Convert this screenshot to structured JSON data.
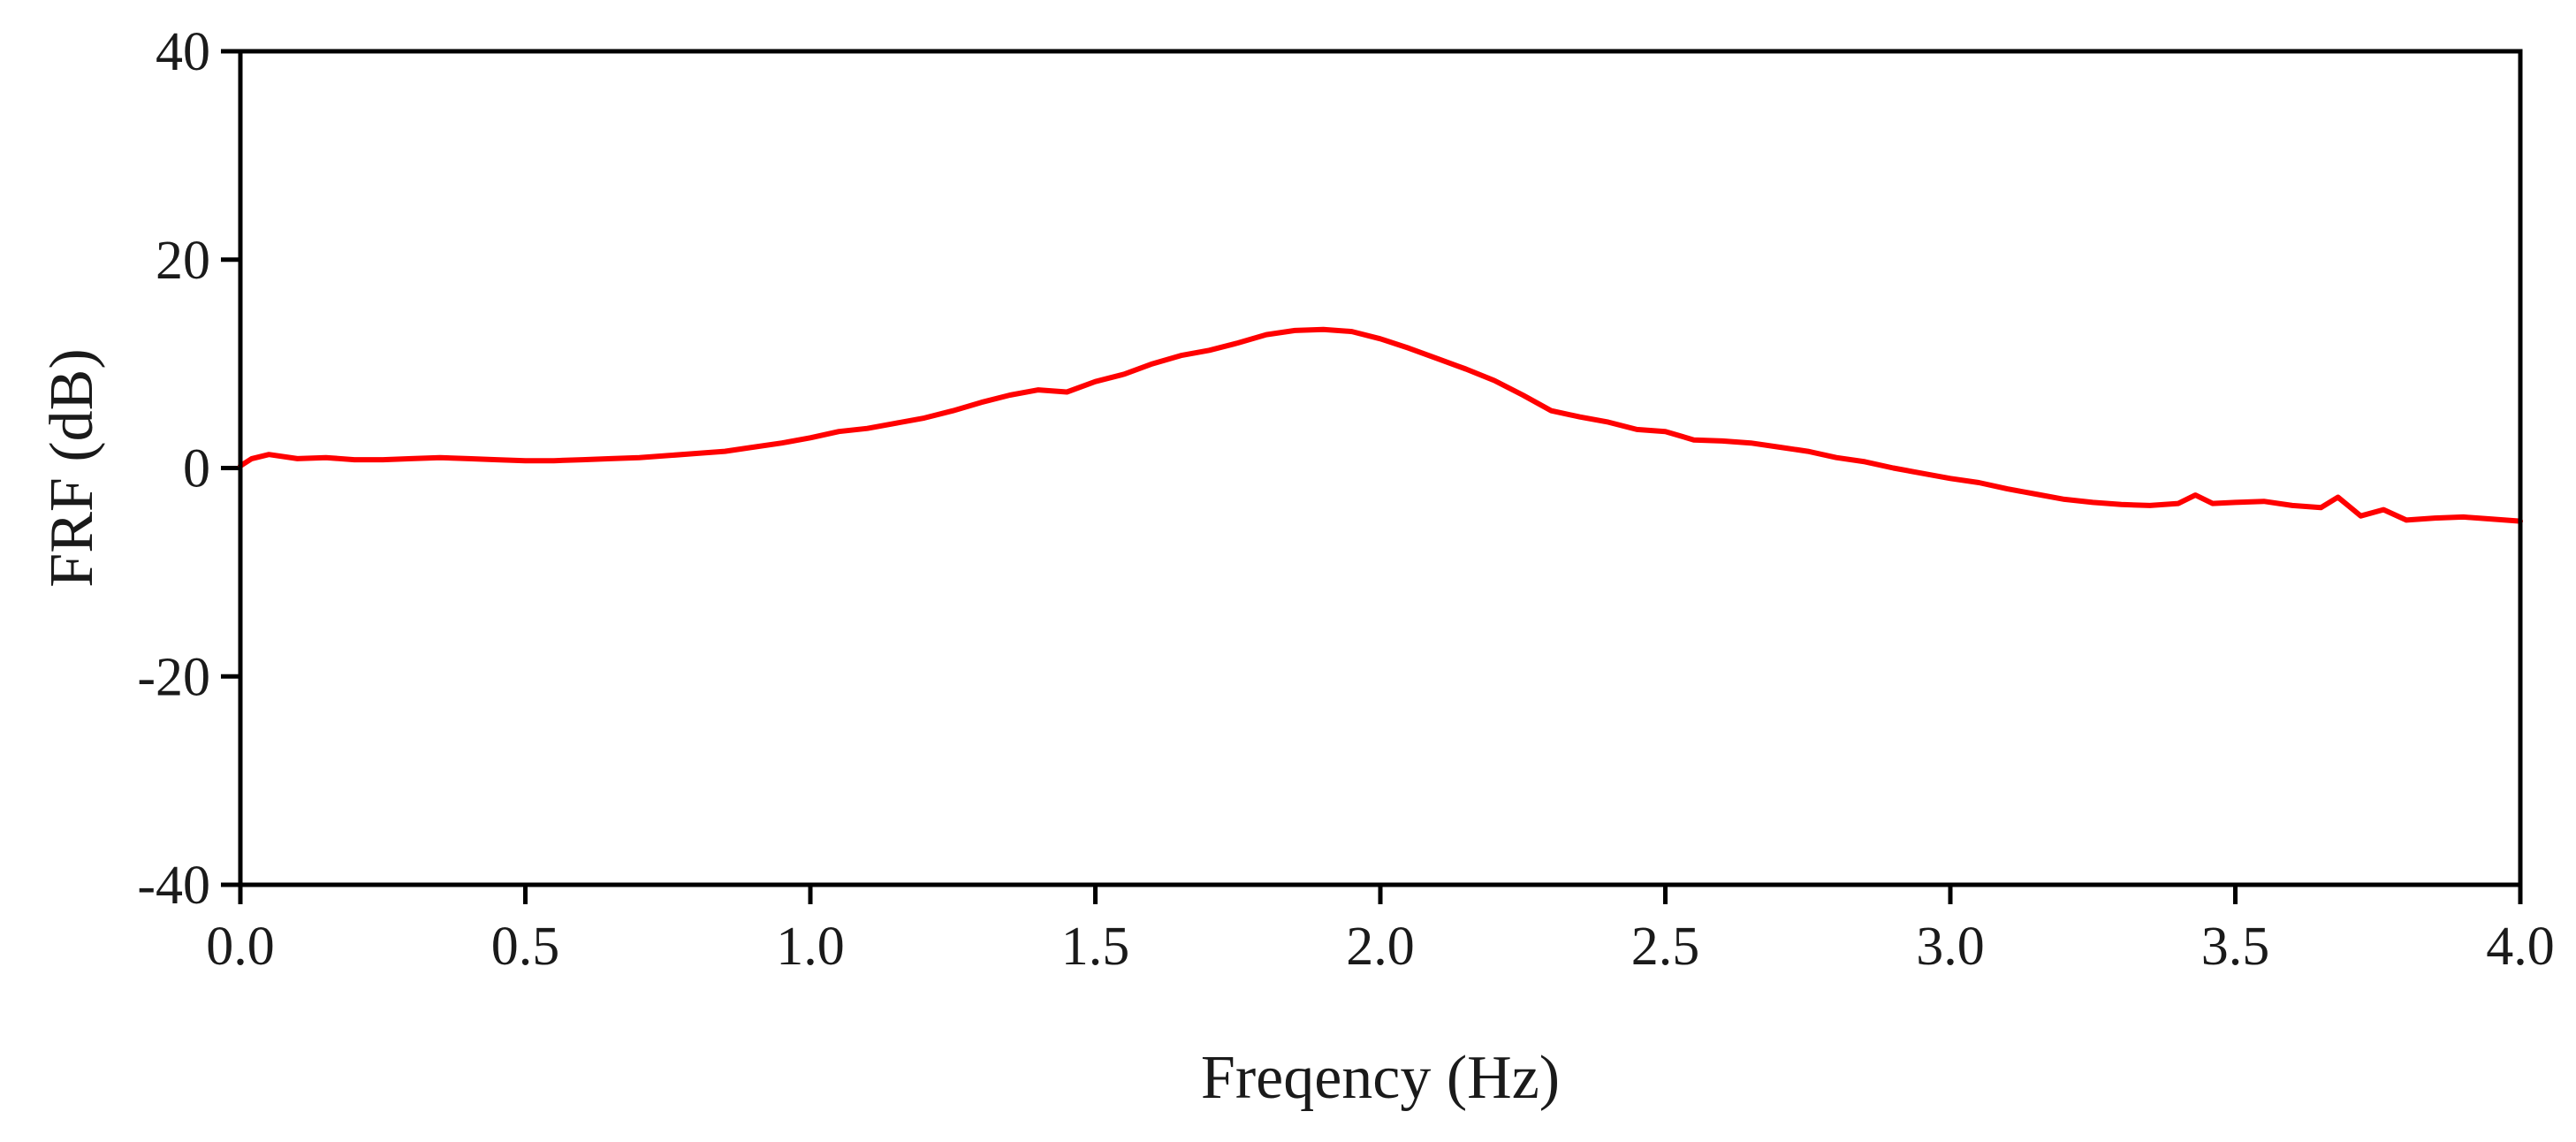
{
  "chart_data": {
    "type": "line",
    "title": "",
    "xlabel": "Freqency (Hz)",
    "ylabel": "FRF (dB)",
    "xlim": [
      0.0,
      4.0
    ],
    "ylim": [
      -40,
      40
    ],
    "xticks": [
      "0.0",
      "0.5",
      "1.0",
      "1.5",
      "2.0",
      "2.5",
      "3.0",
      "3.5",
      "4.0"
    ],
    "yticks": [
      "40",
      "20",
      "0",
      "-20",
      "-40"
    ],
    "grid": false,
    "legend": "none",
    "line_color": "#ff0000",
    "series": [
      {
        "x": [
          0.0,
          0.02,
          0.05,
          0.1,
          0.15,
          0.2,
          0.25,
          0.3,
          0.35,
          0.4,
          0.45,
          0.5,
          0.55,
          0.6,
          0.65,
          0.7,
          0.75,
          0.8,
          0.85,
          0.9,
          0.95,
          1.0,
          1.05,
          1.1,
          1.15,
          1.2,
          1.25,
          1.3,
          1.35,
          1.4,
          1.45,
          1.5,
          1.55,
          1.6,
          1.65,
          1.7,
          1.75,
          1.8,
          1.85,
          1.9,
          1.95,
          2.0,
          2.05,
          2.1,
          2.15,
          2.2,
          2.25,
          2.3,
          2.35,
          2.4,
          2.45,
          2.5,
          2.55,
          2.6,
          2.65,
          2.7,
          2.75,
          2.8,
          2.85,
          2.9,
          2.95,
          3.0,
          3.05,
          3.1,
          3.15,
          3.2,
          3.25,
          3.3,
          3.35,
          3.4,
          3.43,
          3.46,
          3.5,
          3.55,
          3.6,
          3.65,
          3.68,
          3.7,
          3.72,
          3.76,
          3.8,
          3.85,
          3.9,
          3.95,
          4.0
        ],
        "y": [
          0.2,
          0.9,
          1.3,
          0.9,
          1.0,
          0.8,
          0.8,
          0.9,
          1.0,
          0.9,
          0.8,
          0.7,
          0.7,
          0.8,
          0.9,
          1.0,
          1.2,
          1.4,
          1.6,
          2.0,
          2.4,
          2.9,
          3.5,
          3.8,
          4.3,
          4.8,
          5.5,
          6.3,
          7.0,
          7.5,
          7.3,
          8.3,
          9.0,
          10.0,
          10.8,
          11.3,
          12.0,
          12.8,
          13.2,
          13.3,
          13.1,
          12.4,
          11.5,
          10.5,
          9.5,
          8.4,
          7.0,
          5.5,
          4.9,
          4.4,
          3.7,
          3.5,
          2.7,
          2.6,
          2.4,
          2.0,
          1.6,
          1.0,
          0.6,
          0.0,
          -0.5,
          -1.0,
          -1.4,
          -2.0,
          -2.5,
          -3.0,
          -3.3,
          -3.5,
          -3.6,
          -3.4,
          -2.6,
          -3.4,
          -3.3,
          -3.2,
          -3.6,
          -3.8,
          -2.8,
          -3.7,
          -4.6,
          -4.0,
          -5.0,
          -4.8,
          -4.7,
          -4.9,
          -5.1
        ]
      }
    ]
  }
}
